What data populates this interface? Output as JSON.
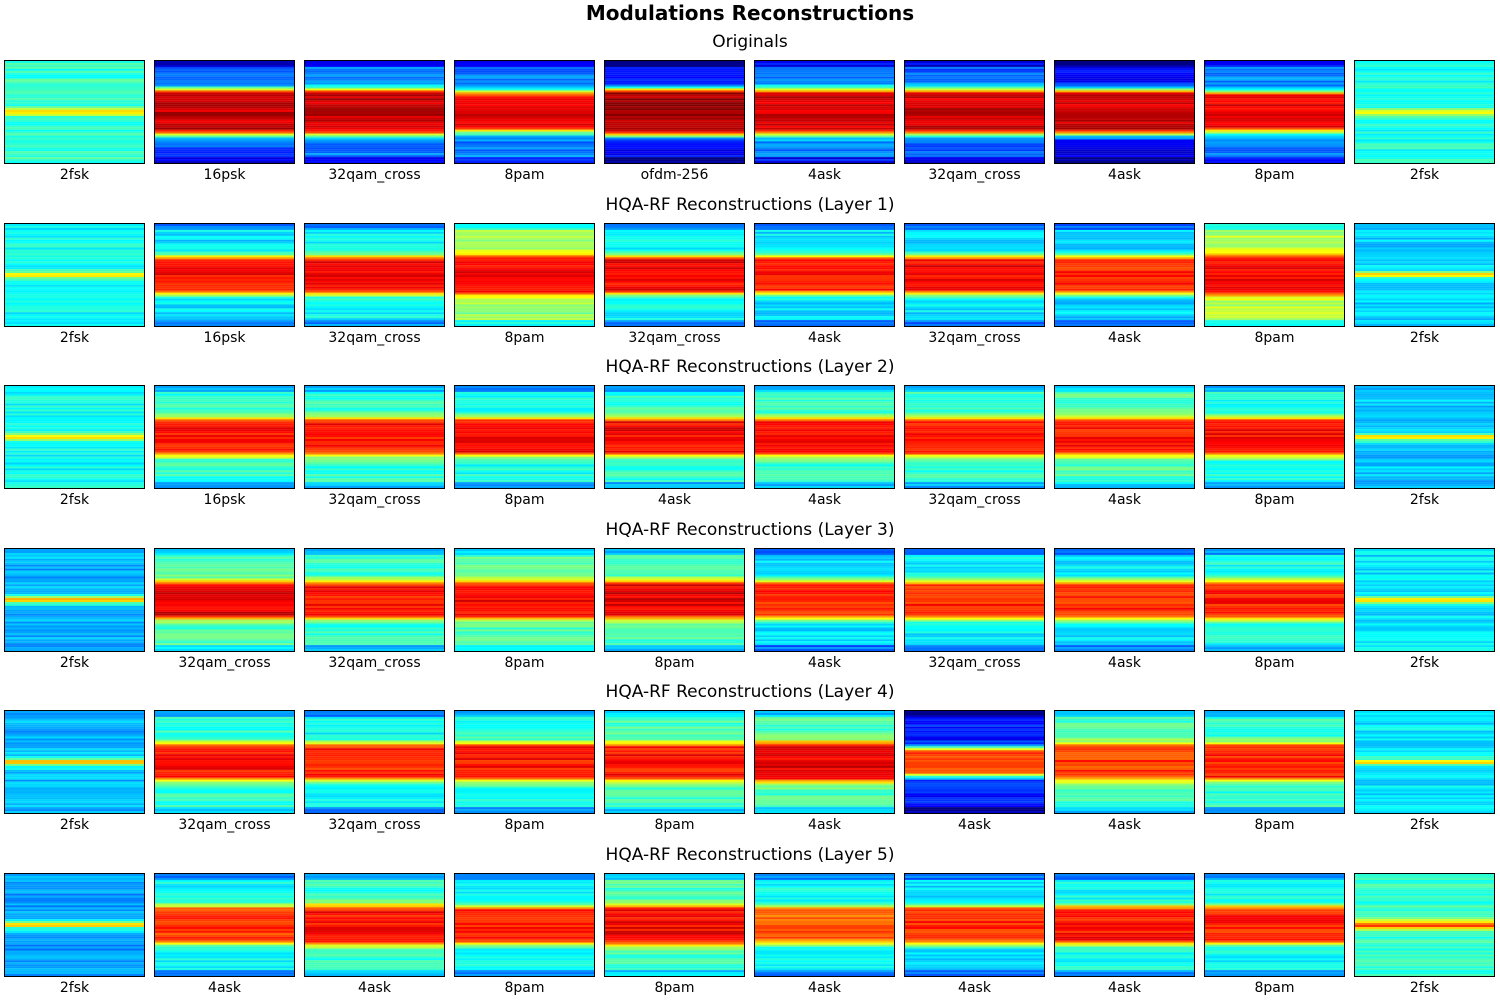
{
  "title": "Modulations Reconstructions",
  "chart_data": {
    "type": "heatmap",
    "colormap": "jet",
    "rows": [
      {
        "title": "Originals",
        "labels": [
          "2fsk",
          "16psk",
          "32qam_cross",
          "8pam",
          "ofdm-256",
          "4ask",
          "32qam_cross",
          "4ask",
          "8pam",
          "2fsk"
        ],
        "band": [
          {
            "peak": 0.45,
            "center": 0.5,
            "width": 0.07,
            "flat": 0,
            "base": 0.42
          },
          {
            "peak": 0.93,
            "center": 0.5,
            "width": 0.38,
            "flat": 0.55,
            "base": 0.2
          },
          {
            "peak": 0.93,
            "center": 0.5,
            "width": 0.38,
            "flat": 0.55,
            "base": 0.25
          },
          {
            "peak": 0.9,
            "center": 0.5,
            "width": 0.36,
            "flat": 0.5,
            "base": 0.25
          },
          {
            "peak": 0.97,
            "center": 0.5,
            "width": 0.36,
            "flat": 0.62,
            "base": 0.12
          },
          {
            "peak": 0.92,
            "center": 0.5,
            "width": 0.38,
            "flat": 0.55,
            "base": 0.25
          },
          {
            "peak": 0.92,
            "center": 0.5,
            "width": 0.38,
            "flat": 0.55,
            "base": 0.22
          },
          {
            "peak": 0.92,
            "center": 0.5,
            "width": 0.38,
            "flat": 0.55,
            "base": 0.12
          },
          {
            "peak": 0.9,
            "center": 0.5,
            "width": 0.36,
            "flat": 0.5,
            "base": 0.25
          },
          {
            "peak": 0.42,
            "center": 0.5,
            "width": 0.07,
            "flat": 0,
            "base": 0.4
          }
        ]
      },
      {
        "title": "HQA-RF Reconstructions (Layer 1)",
        "labels": [
          "2fsk",
          "16psk",
          "32qam_cross",
          "8pam",
          "32qam_cross",
          "4ask",
          "32qam_cross",
          "4ask",
          "8pam",
          "2fsk"
        ],
        "band": [
          {
            "peak": 0.45,
            "center": 0.5,
            "width": 0.06,
            "flat": 0,
            "base": 0.38
          },
          {
            "peak": 0.87,
            "center": 0.5,
            "width": 0.34,
            "flat": 0.5,
            "base": 0.35
          },
          {
            "peak": 0.88,
            "center": 0.5,
            "width": 0.34,
            "flat": 0.5,
            "base": 0.38
          },
          {
            "peak": 0.89,
            "center": 0.5,
            "width": 0.36,
            "flat": 0.5,
            "base": 0.52
          },
          {
            "peak": 0.88,
            "center": 0.5,
            "width": 0.34,
            "flat": 0.5,
            "base": 0.38
          },
          {
            "peak": 0.85,
            "center": 0.5,
            "width": 0.34,
            "flat": 0.5,
            "base": 0.35
          },
          {
            "peak": 0.88,
            "center": 0.5,
            "width": 0.34,
            "flat": 0.5,
            "base": 0.35
          },
          {
            "peak": 0.84,
            "center": 0.5,
            "width": 0.34,
            "flat": 0.5,
            "base": 0.33
          },
          {
            "peak": 0.88,
            "center": 0.5,
            "width": 0.36,
            "flat": 0.5,
            "base": 0.55
          },
          {
            "peak": 0.42,
            "center": 0.5,
            "width": 0.06,
            "flat": 0,
            "base": 0.33
          }
        ]
      },
      {
        "title": "HQA-RF Reconstructions (Layer 2)",
        "labels": [
          "2fsk",
          "16psk",
          "32qam_cross",
          "8pam",
          "4ask",
          "4ask",
          "32qam_cross",
          "4ask",
          "8pam",
          "2fsk"
        ],
        "band": [
          {
            "peak": 0.45,
            "center": 0.5,
            "width": 0.06,
            "flat": 0,
            "base": 0.38
          },
          {
            "peak": 0.86,
            "center": 0.5,
            "width": 0.34,
            "flat": 0.5,
            "base": 0.42
          },
          {
            "peak": 0.86,
            "center": 0.5,
            "width": 0.34,
            "flat": 0.5,
            "base": 0.42
          },
          {
            "peak": 0.88,
            "center": 0.5,
            "width": 0.34,
            "flat": 0.5,
            "base": 0.4
          },
          {
            "peak": 0.88,
            "center": 0.5,
            "width": 0.34,
            "flat": 0.5,
            "base": 0.42
          },
          {
            "peak": 0.87,
            "center": 0.5,
            "width": 0.34,
            "flat": 0.5,
            "base": 0.42
          },
          {
            "peak": 0.86,
            "center": 0.5,
            "width": 0.34,
            "flat": 0.5,
            "base": 0.42
          },
          {
            "peak": 0.85,
            "center": 0.5,
            "width": 0.34,
            "flat": 0.5,
            "base": 0.45
          },
          {
            "peak": 0.88,
            "center": 0.5,
            "width": 0.34,
            "flat": 0.5,
            "base": 0.4
          },
          {
            "peak": 0.42,
            "center": 0.5,
            "width": 0.06,
            "flat": 0,
            "base": 0.32
          }
        ]
      },
      {
        "title": "HQA-RF Reconstructions (Layer 3)",
        "labels": [
          "2fsk",
          "32qam_cross",
          "32qam_cross",
          "8pam",
          "8pam",
          "4ask",
          "32qam_cross",
          "4ask",
          "8pam",
          "2fsk"
        ],
        "band": [
          {
            "peak": 0.45,
            "center": 0.5,
            "width": 0.06,
            "flat": 0,
            "base": 0.3
          },
          {
            "peak": 0.9,
            "center": 0.5,
            "width": 0.34,
            "flat": 0.5,
            "base": 0.45
          },
          {
            "peak": 0.86,
            "center": 0.5,
            "width": 0.34,
            "flat": 0.5,
            "base": 0.42
          },
          {
            "peak": 0.88,
            "center": 0.5,
            "width": 0.34,
            "flat": 0.5,
            "base": 0.45
          },
          {
            "peak": 0.9,
            "center": 0.5,
            "width": 0.34,
            "flat": 0.5,
            "base": 0.45
          },
          {
            "peak": 0.84,
            "center": 0.5,
            "width": 0.34,
            "flat": 0.5,
            "base": 0.35
          },
          {
            "peak": 0.84,
            "center": 0.5,
            "width": 0.34,
            "flat": 0.5,
            "base": 0.36
          },
          {
            "peak": 0.84,
            "center": 0.5,
            "width": 0.34,
            "flat": 0.5,
            "base": 0.36
          },
          {
            "peak": 0.85,
            "center": 0.5,
            "width": 0.34,
            "flat": 0.5,
            "base": 0.4
          },
          {
            "peak": 0.42,
            "center": 0.5,
            "width": 0.06,
            "flat": 0,
            "base": 0.35
          }
        ]
      },
      {
        "title": "HQA-RF Reconstructions (Layer 4)",
        "labels": [
          "2fsk",
          "32qam_cross",
          "32qam_cross",
          "8pam",
          "8pam",
          "4ask",
          "4ask",
          "4ask",
          "8pam",
          "2fsk"
        ],
        "band": [
          {
            "peak": 0.45,
            "center": 0.5,
            "width": 0.06,
            "flat": 0,
            "base": 0.3
          },
          {
            "peak": 0.86,
            "center": 0.5,
            "width": 0.34,
            "flat": 0.5,
            "base": 0.42
          },
          {
            "peak": 0.84,
            "center": 0.5,
            "width": 0.34,
            "flat": 0.5,
            "base": 0.38
          },
          {
            "peak": 0.86,
            "center": 0.5,
            "width": 0.34,
            "flat": 0.5,
            "base": 0.4
          },
          {
            "peak": 0.86,
            "center": 0.5,
            "width": 0.34,
            "flat": 0.5,
            "base": 0.45
          },
          {
            "peak": 0.9,
            "center": 0.5,
            "width": 0.36,
            "flat": 0.5,
            "base": 0.45
          },
          {
            "peak": 0.82,
            "center": 0.5,
            "width": 0.3,
            "flat": 0.4,
            "base": 0.15
          },
          {
            "peak": 0.82,
            "center": 0.5,
            "width": 0.34,
            "flat": 0.5,
            "base": 0.45
          },
          {
            "peak": 0.85,
            "center": 0.5,
            "width": 0.34,
            "flat": 0.5,
            "base": 0.42
          },
          {
            "peak": 0.42,
            "center": 0.5,
            "width": 0.06,
            "flat": 0,
            "base": 0.35
          }
        ]
      },
      {
        "title": "HQA-RF Reconstructions (Layer 5)",
        "labels": [
          "2fsk",
          "4ask",
          "4ask",
          "8pam",
          "8pam",
          "4ask",
          "4ask",
          "4ask",
          "8pam",
          "2fsk"
        ],
        "band": [
          {
            "peak": 0.43,
            "center": 0.5,
            "width": 0.06,
            "flat": 0,
            "base": 0.28
          },
          {
            "peak": 0.82,
            "center": 0.5,
            "width": 0.34,
            "flat": 0.5,
            "base": 0.38
          },
          {
            "peak": 0.86,
            "center": 0.5,
            "width": 0.36,
            "flat": 0.5,
            "base": 0.42
          },
          {
            "peak": 0.84,
            "center": 0.5,
            "width": 0.34,
            "flat": 0.5,
            "base": 0.38
          },
          {
            "peak": 0.88,
            "center": 0.5,
            "width": 0.36,
            "flat": 0.5,
            "base": 0.45
          },
          {
            "peak": 0.78,
            "center": 0.5,
            "width": 0.34,
            "flat": 0.5,
            "base": 0.38
          },
          {
            "peak": 0.84,
            "center": 0.5,
            "width": 0.34,
            "flat": 0.5,
            "base": 0.35
          },
          {
            "peak": 0.86,
            "center": 0.5,
            "width": 0.34,
            "flat": 0.5,
            "base": 0.38
          },
          {
            "peak": 0.84,
            "center": 0.5,
            "width": 0.34,
            "flat": 0.5,
            "base": 0.38
          },
          {
            "peak": 0.55,
            "center": 0.5,
            "width": 0.08,
            "flat": 0,
            "base": 0.42
          }
        ]
      }
    ]
  }
}
